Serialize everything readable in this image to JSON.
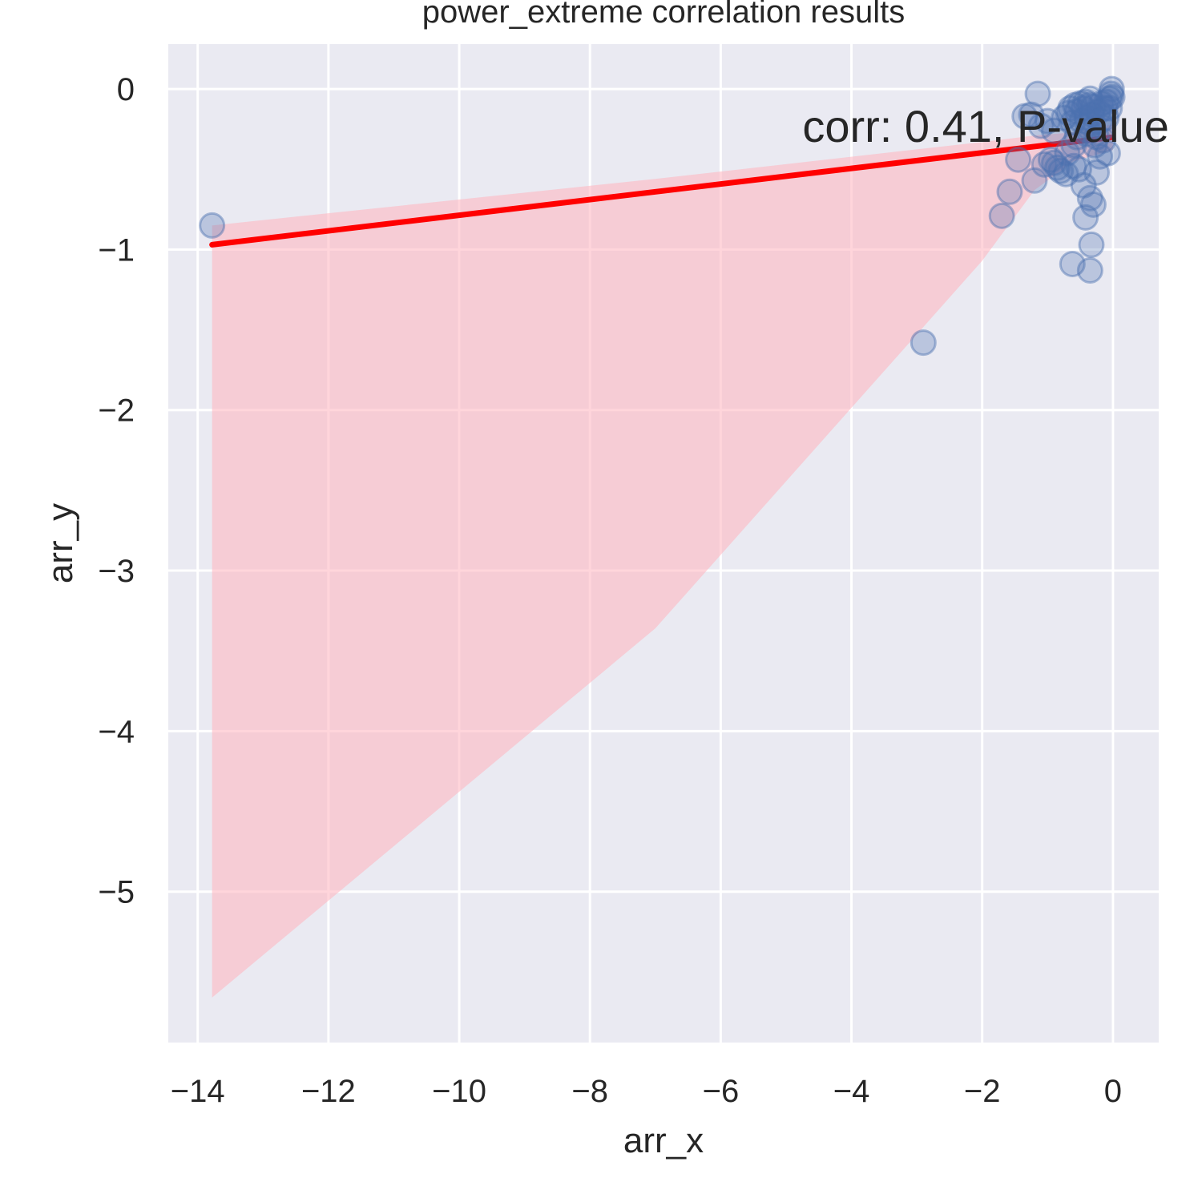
{
  "chart_data": {
    "type": "scatter",
    "title": "power_extreme correlation results",
    "xlabel": "arr_x",
    "ylabel": "arr_y",
    "xlim": [
      -14.45,
      0.7
    ],
    "ylim": [
      -5.94,
      0.28
    ],
    "xticks": [
      -14,
      -12,
      -10,
      -8,
      -6,
      -4,
      -2,
      0
    ],
    "xtick_labels": [
      "−14",
      "−12",
      "−10",
      "−8",
      "−6",
      "−4",
      "−2",
      "0"
    ],
    "yticks": [
      0,
      -1,
      -2,
      -3,
      -4,
      -5
    ],
    "ytick_labels": [
      "0",
      "−1",
      "−2",
      "−3",
      "−4",
      "−5"
    ],
    "grid": true,
    "annotation": {
      "text": "corr: 0.41, P-value",
      "x": -4.75,
      "y": -0.23
    },
    "regression_line": {
      "x": [
        -13.78,
        0.0
      ],
      "y": [
        -0.97,
        -0.3
      ],
      "color": "#ff0000"
    },
    "confidence_band": {
      "x": [
        -13.78,
        -7.0,
        -2.0,
        -1.2,
        -0.6,
        0.0
      ],
      "upper": [
        -0.85,
        -0.56,
        -0.33,
        -0.29,
        -0.27,
        -0.22
      ],
      "lower": [
        -5.66,
        -3.36,
        -1.07,
        -0.63,
        -0.45,
        -0.38
      ],
      "color": "#ffb3bd"
    },
    "series": [
      {
        "marker_color": "#4c72b0",
        "x": [
          -13.78,
          -2.9,
          -1.7,
          -1.58,
          -1.45,
          -1.35,
          -1.25,
          -1.2,
          -1.15,
          -1.1,
          -1.05,
          -1.0,
          -0.95,
          -0.9,
          -0.85,
          -0.8,
          -0.75,
          -0.72,
          -0.68,
          -0.65,
          -0.62,
          -0.6,
          -0.58,
          -0.55,
          -0.52,
          -0.5,
          -0.48,
          -0.45,
          -0.42,
          -0.4,
          -0.38,
          -0.36,
          -0.35,
          -0.34,
          -0.32,
          -0.3,
          -0.28,
          -0.25,
          -0.22,
          -0.2,
          -0.18,
          -0.15,
          -0.12,
          -0.1,
          -0.08,
          -0.05,
          -0.03,
          -0.02,
          -0.01,
          -0.62,
          -0.35,
          -0.33,
          -0.42,
          -0.3,
          -0.35,
          -0.45,
          -0.6,
          -0.25,
          -0.15,
          -0.9,
          -0.7,
          -0.55,
          -0.4,
          -0.2,
          -0.1,
          -0.05
        ],
        "y": [
          -0.85,
          -1.58,
          -0.79,
          -0.64,
          -0.44,
          -0.17,
          -0.16,
          -0.57,
          -0.03,
          -0.23,
          -0.47,
          -0.2,
          -0.44,
          -0.46,
          -0.49,
          -0.51,
          -0.18,
          -0.53,
          -0.15,
          -0.12,
          -0.21,
          -0.48,
          -0.1,
          -0.14,
          -0.5,
          -0.09,
          -0.2,
          -0.12,
          -0.08,
          -0.18,
          -0.26,
          -0.1,
          -0.06,
          -0.22,
          -0.16,
          -0.11,
          -0.35,
          -0.3,
          -0.14,
          -0.42,
          -0.09,
          -0.32,
          -0.12,
          -0.08,
          -0.4,
          -0.12,
          -0.03,
          0.0,
          -0.05,
          -1.09,
          -1.13,
          -0.97,
          -0.8,
          -0.72,
          -0.68,
          -0.6,
          -0.35,
          -0.52,
          -0.24,
          -0.26,
          -0.4,
          -0.3,
          -0.28,
          -0.2,
          -0.18,
          -0.06
        ]
      }
    ]
  }
}
